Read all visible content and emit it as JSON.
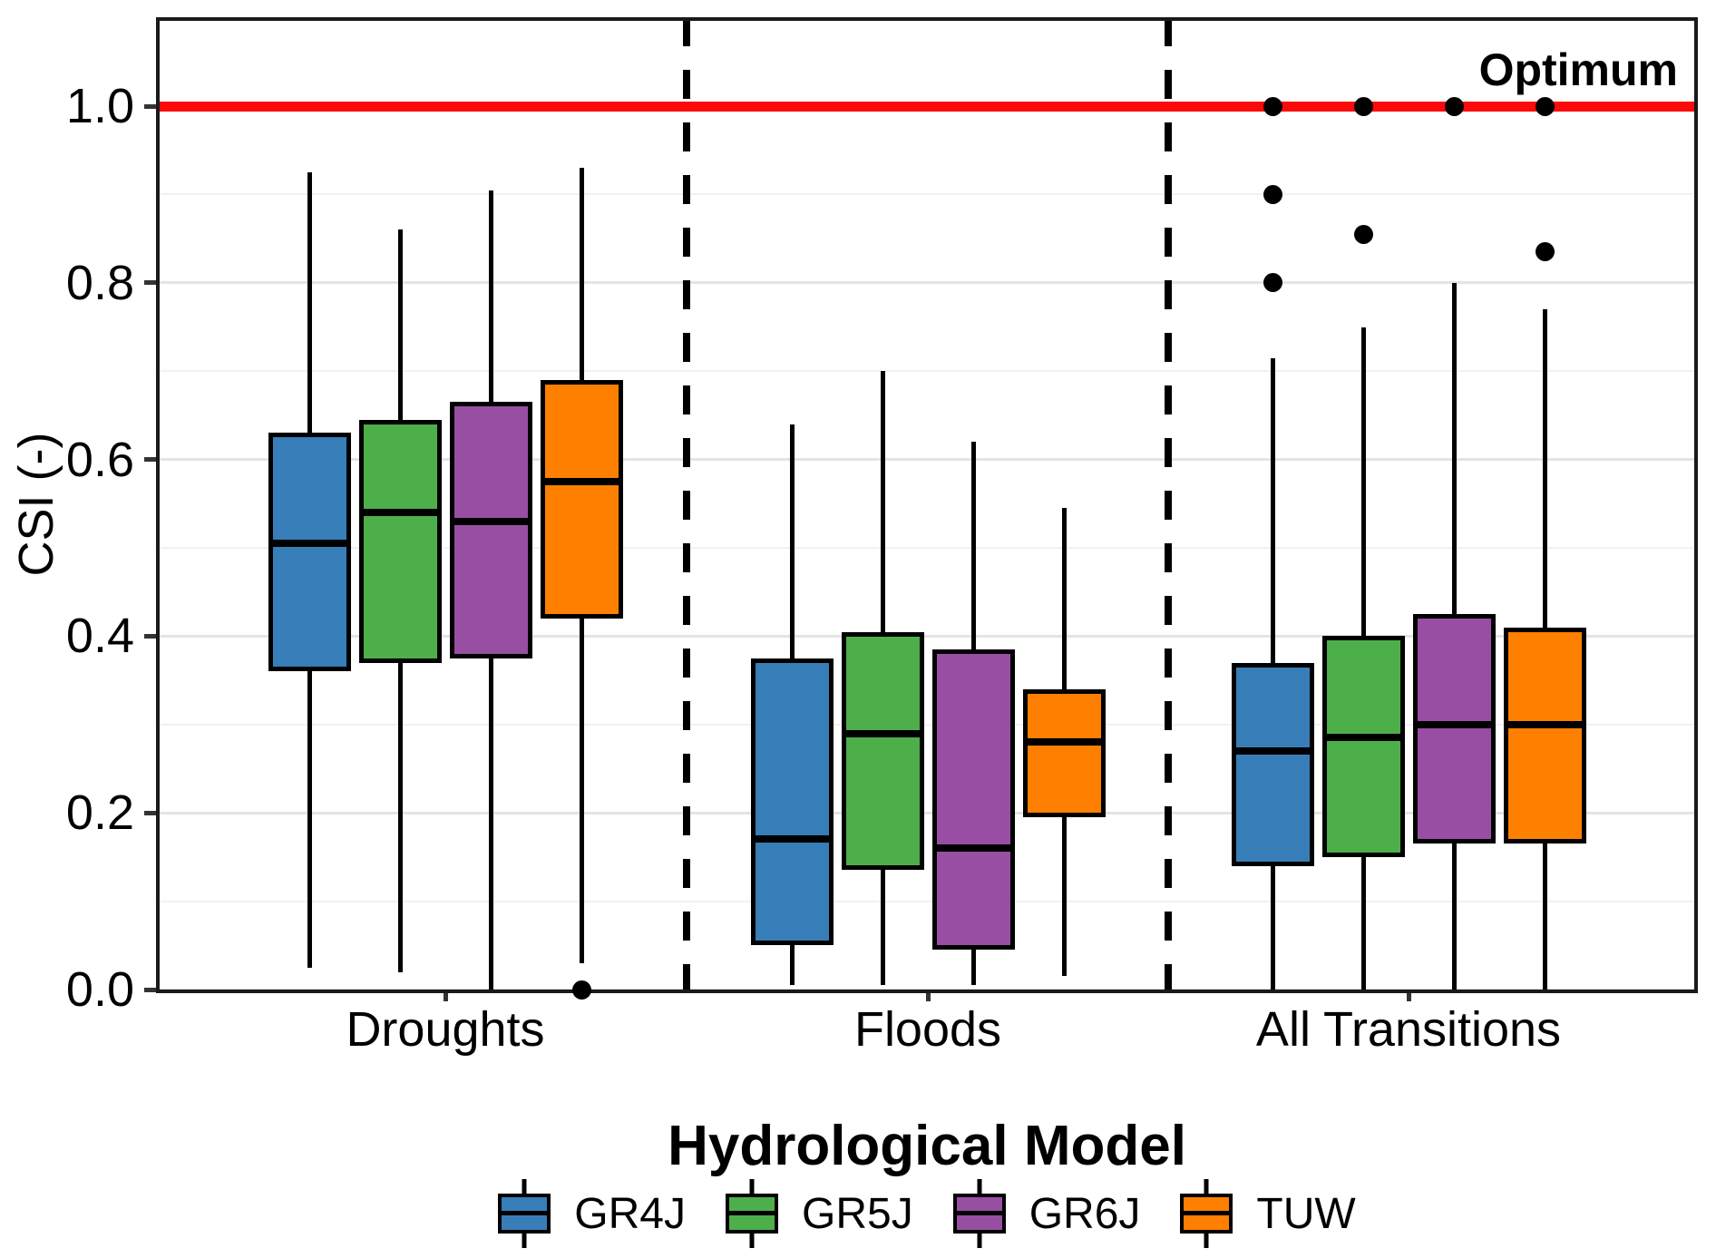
{
  "chart_data": {
    "type": "boxplot",
    "title": "",
    "xlabel": "Hydrological Model",
    "ylabel": "CSI (-)",
    "ylim": [
      0,
      1.1
    ],
    "grid": true,
    "yticks": [
      0.0,
      0.2,
      0.4,
      0.6,
      0.8,
      1.0
    ],
    "ytick_labels": [
      "0.0",
      "0.2",
      "0.4",
      "0.6",
      "0.8",
      "1.0"
    ],
    "minor_yticks": [
      0.1,
      0.3,
      0.5,
      0.7,
      0.9
    ],
    "categories": [
      "Droughts",
      "Floods",
      "All Transitions"
    ],
    "legend_position": "bottom",
    "annotations": {
      "optimum": {
        "text": "Optimum",
        "y": 1.0,
        "color": "#FA0A0A"
      }
    },
    "series": [
      {
        "name": "GR4J",
        "color": "#377EB8",
        "boxes": [
          {
            "category": "Droughts",
            "whisker_low": 0.025,
            "q1": 0.36,
            "median": 0.505,
            "q3": 0.63,
            "whisker_high": 0.925,
            "outliers": []
          },
          {
            "category": "Floods",
            "whisker_low": 0.005,
            "q1": 0.05,
            "median": 0.17,
            "q3": 0.375,
            "whisker_high": 0.64,
            "outliers": []
          },
          {
            "category": "All Transitions",
            "whisker_low": 0.0,
            "q1": 0.14,
            "median": 0.27,
            "q3": 0.37,
            "whisker_high": 0.715,
            "outliers": [
              0.8,
              0.9,
              1.0
            ]
          }
        ]
      },
      {
        "name": "GR5J",
        "color": "#4DAF4A",
        "boxes": [
          {
            "category": "Droughts",
            "whisker_low": 0.02,
            "q1": 0.37,
            "median": 0.54,
            "q3": 0.645,
            "whisker_high": 0.86,
            "outliers": []
          },
          {
            "category": "Floods",
            "whisker_low": 0.005,
            "q1": 0.135,
            "median": 0.29,
            "q3": 0.405,
            "whisker_high": 0.7,
            "outliers": []
          },
          {
            "category": "All Transitions",
            "whisker_low": 0.0,
            "q1": 0.15,
            "median": 0.285,
            "q3": 0.4,
            "whisker_high": 0.75,
            "outliers": [
              0.855,
              1.0
            ]
          }
        ]
      },
      {
        "name": "GR6J",
        "color": "#984EA3",
        "boxes": [
          {
            "category": "Droughts",
            "whisker_low": 0.0,
            "q1": 0.375,
            "median": 0.53,
            "q3": 0.665,
            "whisker_high": 0.905,
            "outliers": []
          },
          {
            "category": "Floods",
            "whisker_low": 0.005,
            "q1": 0.045,
            "median": 0.16,
            "q3": 0.385,
            "whisker_high": 0.62,
            "outliers": []
          },
          {
            "category": "All Transitions",
            "whisker_low": 0.0,
            "q1": 0.165,
            "median": 0.3,
            "q3": 0.425,
            "whisker_high": 0.8,
            "outliers": [
              1.0
            ]
          }
        ]
      },
      {
        "name": "TUW",
        "color": "#FF7F00",
        "boxes": [
          {
            "category": "Droughts",
            "whisker_low": 0.03,
            "q1": 0.42,
            "median": 0.575,
            "q3": 0.69,
            "whisker_high": 0.93,
            "outliers": [
              0.0
            ]
          },
          {
            "category": "Floods",
            "whisker_low": 0.015,
            "q1": 0.195,
            "median": 0.28,
            "q3": 0.34,
            "whisker_high": 0.545,
            "outliers": []
          },
          {
            "category": "All Transitions",
            "whisker_low": 0.0,
            "q1": 0.165,
            "median": 0.3,
            "q3": 0.41,
            "whisker_high": 0.77,
            "outliers": [
              0.835,
              1.0
            ]
          }
        ]
      }
    ]
  }
}
